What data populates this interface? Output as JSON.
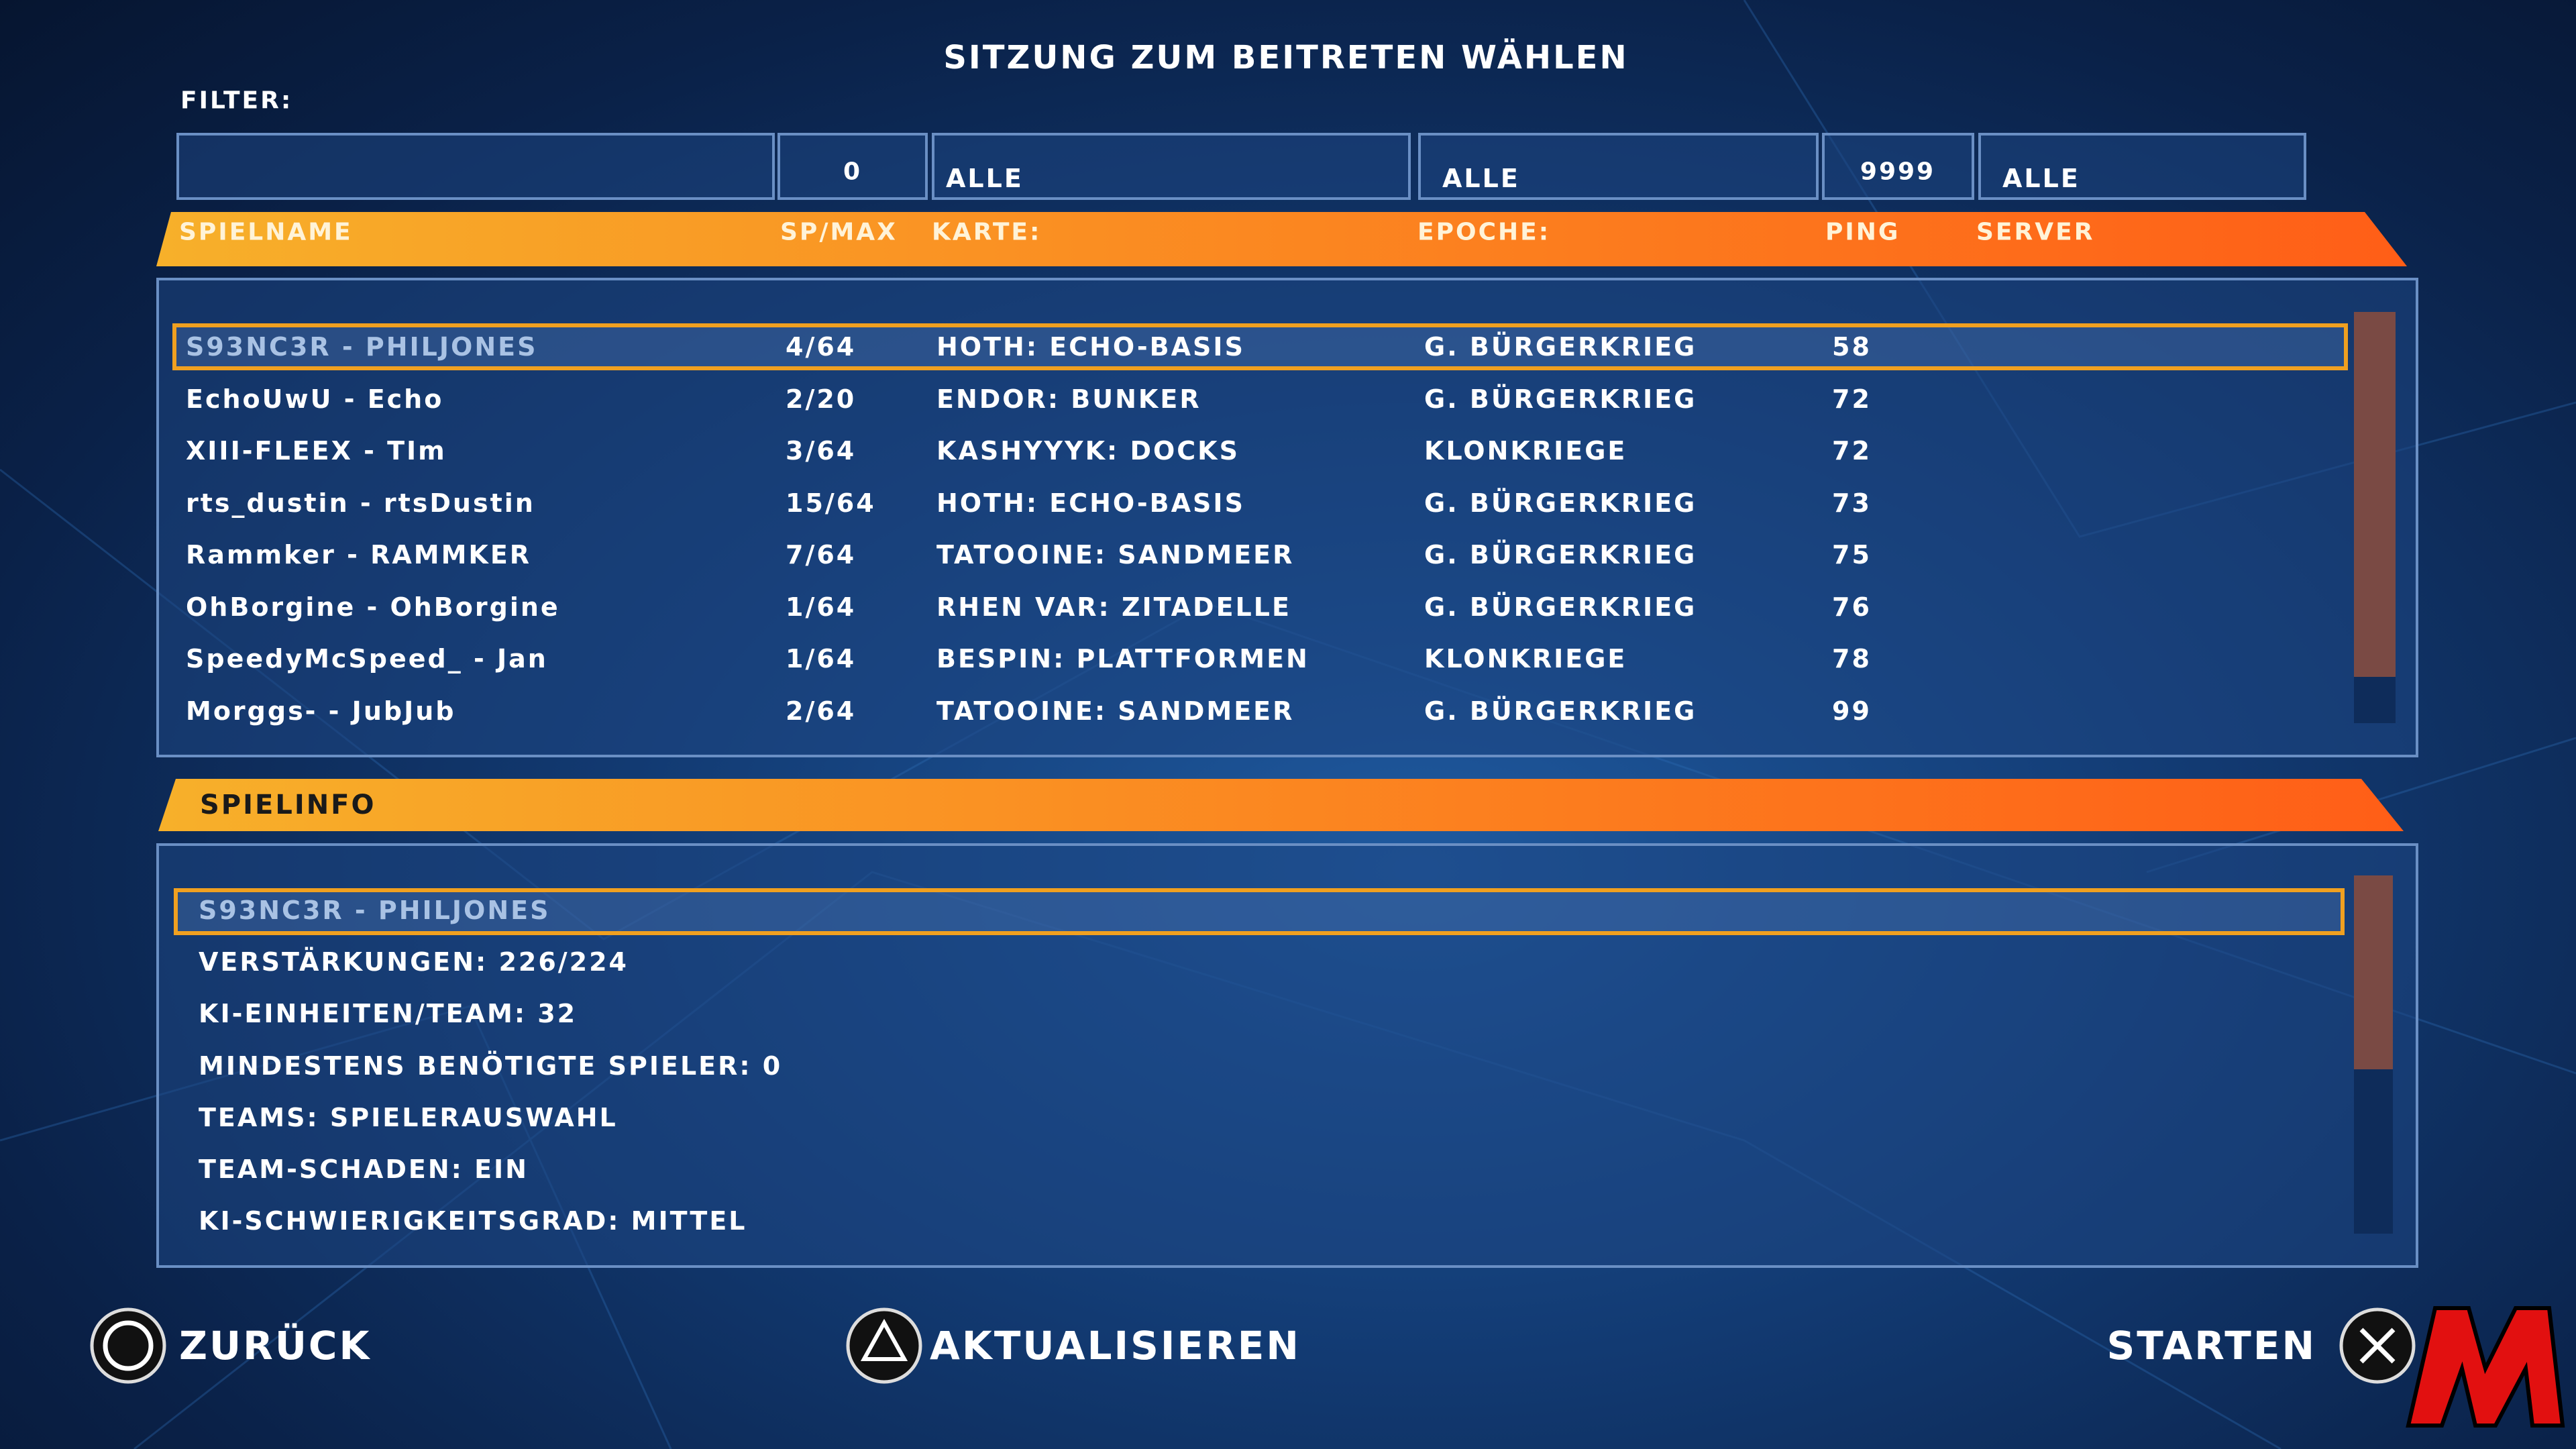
{
  "header": {
    "title": "SITZUNG ZUM BEITRETEN WÄHLEN",
    "filter_label": "FILTER:"
  },
  "filters": [
    0,
    "ALLE",
    "ALLE",
    9999,
    "ALLE"
  ],
  "table": {
    "columns": [
      "SPIELNAME",
      "SP/MAX",
      "KARTE:",
      "EPOCHE:",
      "PING",
      "SERVER"
    ],
    "rows": [
      [
        "S93NC3R - PHILJONES",
        "4/64",
        "HOTH: ECHO-BASIS",
        "G. BÜRGERKRIEG",
        58
      ],
      [
        "EchoUwU - Echo",
        "2/20",
        "ENDOR: BUNKER",
        "G. BÜRGERKRIEG",
        72
      ],
      [
        "XIII-FLEEX - TIm",
        "3/64",
        "KASHYYYK: DOCKS",
        "KLONKRIEGE",
        72
      ],
      [
        "rts_dustin - rtsDustin",
        "15/64",
        "HOTH: ECHO-BASIS",
        "G. BÜRGERKRIEG",
        73
      ],
      [
        "Rammker - RAMMKER",
        "7/64",
        "TATOOINE: SANDMEER",
        "G. BÜRGERKRIEG",
        75
      ],
      [
        "OhBorgine - OhBorgine",
        "1/64",
        "RHEN VAR: ZITADELLE",
        "G. BÜRGERKRIEG",
        76
      ],
      [
        "SpeedyMcSpeed_ - Jan",
        "1/64",
        "BESPIN: PLATTFORMEN",
        "KLONKRIEGE",
        78
      ],
      [
        "Morggs- - JubJub",
        "2/64",
        "TATOOINE: SANDMEER",
        "G. BÜRGERKRIEG",
        99
      ]
    ]
  },
  "info": {
    "title": "SPIELINFO",
    "lines": [
      "S93NC3R - PHILJONES",
      "VERSTÄRKUNGEN: 226/224",
      "KI-EINHEITEN/TEAM: 32",
      "MINDESTENS BENÖTIGTE SPIELER: 0",
      "TEAMS: SPIELERAUSWAHL",
      "TEAM-SCHADEN: EIN",
      "KI-SCHWIERIGKEITSGRAD: MITTEL"
    ]
  },
  "buttons": {
    "back": "ZURÜCK",
    "refresh": "AKTUALISIEREN",
    "start": "STARTEN"
  }
}
